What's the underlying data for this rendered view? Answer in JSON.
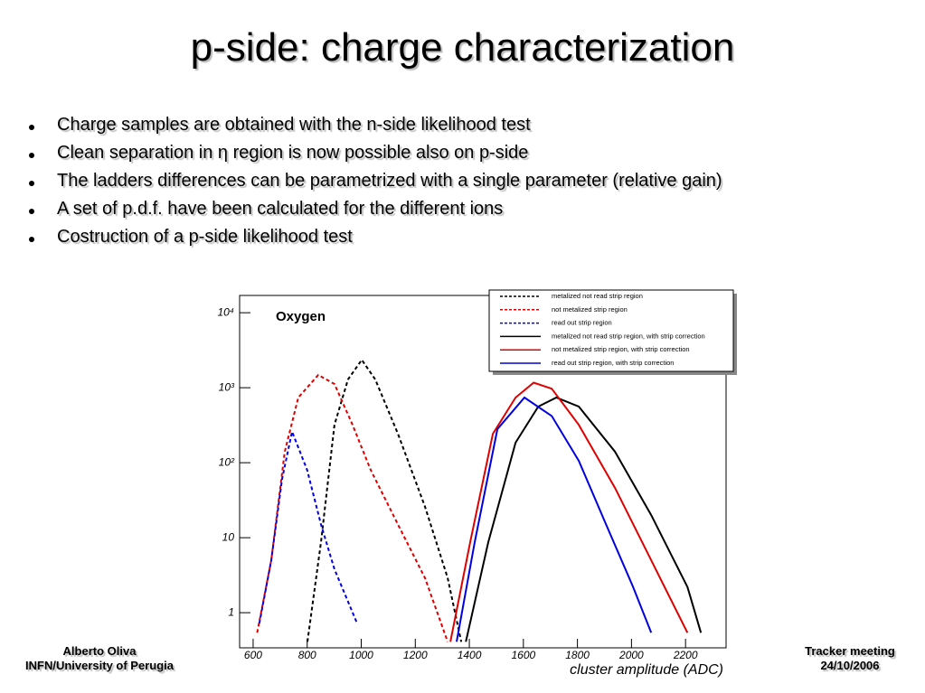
{
  "slide": {
    "title": "p-side: charge characterization",
    "bullets": [
      "Charge samples are obtained with the n-side likelihood test",
      "Clean separation in η region is now possible also on p-side",
      "The ladders differences can be parametrized with a single parameter (relative gain)",
      "A set of p.d.f. have been calculated for the different ions",
      "Costruction of a p-side likelihood test"
    ],
    "footer_left": [
      "Alberto Oliva",
      "INFN/University of Perugia"
    ],
    "footer_right": [
      "Tracker meeting",
      "24/10/2006"
    ]
  },
  "chart_data": {
    "type": "line",
    "annotation": "Oxygen",
    "x_label": "cluster amplitude (ADC)",
    "log_y": true,
    "xlim": [
      550,
      2350
    ],
    "ylim": [
      0.34,
      17000
    ],
    "xticks": [
      600,
      800,
      1000,
      1200,
      1400,
      1600,
      1800,
      2000,
      2200
    ],
    "yticks": [
      1,
      10,
      {
        "value": 100,
        "label": "10²"
      },
      {
        "value": 1000,
        "label": "10³"
      },
      {
        "value": 10000,
        "label": "10⁴"
      }
    ],
    "series": [
      {
        "name": "metalized not read strip region",
        "color": "#000000",
        "dash": true,
        "x": [
          801,
          851,
          901,
          951,
          1002,
          1052,
          1136,
          1236,
          1320,
          1370
        ],
        "values": [
          0.41,
          8.7,
          320,
          1290,
          2350,
          1290,
          243,
          26,
          2.9,
          0.41
        ]
      },
      {
        "name": "not metalized strip region",
        "color": "#e00000",
        "dash": true,
        "x": [
          615,
          667,
          717,
          767,
          841,
          901,
          968,
          1035,
          1136,
          1236,
          1320
        ],
        "values": [
          0.54,
          5,
          140,
          740,
          1480,
          1120,
          320,
          80,
          15,
          2.9,
          0.41
        ]
      },
      {
        "name": "read out strip region",
        "color": "#0000e0",
        "dash": true,
        "x": [
          623,
          667,
          707,
          744,
          800,
          851,
          901,
          985
        ],
        "values": [
          0.72,
          5,
          60,
          260,
          80,
          15,
          3.8,
          0.72
        ]
      },
      {
        "name": "metalized not read strip region, with strip correction",
        "color": "#000000",
        "dash": false,
        "x": [
          1387,
          1470,
          1571,
          1655,
          1722,
          1805,
          1939,
          2073,
          2207,
          2257
        ],
        "values": [
          0.41,
          8.7,
          185,
          560,
          740,
          560,
          140,
          20,
          2.2,
          0.54
        ]
      },
      {
        "name": "not metalized strip region, with strip correction",
        "color": "#e00000",
        "dash": false,
        "x": [
          1330,
          1403,
          1487,
          1571,
          1638,
          1705,
          1805,
          1939,
          2073,
          2207
        ],
        "values": [
          0.41,
          8.7,
          243,
          740,
          1170,
          970,
          320,
          46,
          5,
          0.54
        ]
      },
      {
        "name": "read out strip region, with strip correction",
        "color": "#0000e0",
        "dash": false,
        "x": [
          1353,
          1420,
          1504,
          1604,
          1705,
          1805,
          1906,
          2006,
          2073
        ],
        "values": [
          0.41,
          8.7,
          280,
          740,
          420,
          106,
          15,
          2.2,
          0.54
        ]
      }
    ]
  }
}
